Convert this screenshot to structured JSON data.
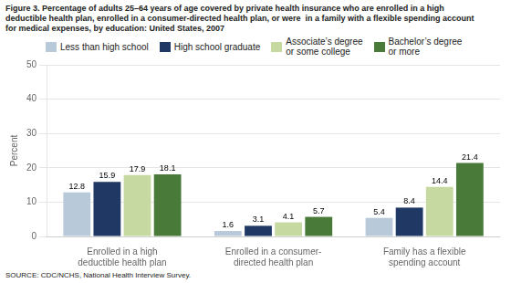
{
  "chart_data": {
    "type": "bar",
    "title": "Figure 3. Percentage of adults 25–64 years of age covered by private health insurance who are enrolled in a high\ndeductible health plan, enrolled in a consumer-directed health plan, or were  in a family with a flexible spending account\nfor medical expenses, by education: United States, 2007",
    "annotations": [
      "SOURCE: CDC/NCHS, National Health Interview Survey."
    ],
    "ylabel": "Percent",
    "categories": [
      "Enrolled in a high\ndeductible health plan",
      "Enrolled in a consumer-\ndirected health plan",
      "Family has a flexible\nspending account"
    ],
    "series": [
      {
        "name": "Less than high school",
        "color": "#b8c9d9",
        "values": [
          12.8,
          1.6,
          5.4
        ]
      },
      {
        "name": "High school graduate",
        "color": "#1f3864",
        "values": [
          15.9,
          3.1,
          8.4
        ]
      },
      {
        "name": "Associate’s degree\nor some college",
        "color": "#c5d9a0",
        "values": [
          17.9,
          4.1,
          14.4
        ]
      },
      {
        "name": "Bachelor’s degree\nor more",
        "color": "#4a7a3a",
        "values": [
          18.1,
          5.7,
          21.4
        ]
      }
    ],
    "ylim": [
      0,
      50
    ],
    "yticks": [
      0,
      10,
      20,
      30,
      40,
      50
    ],
    "grid": true,
    "legend": "upper left",
    "data_labels": true
  }
}
